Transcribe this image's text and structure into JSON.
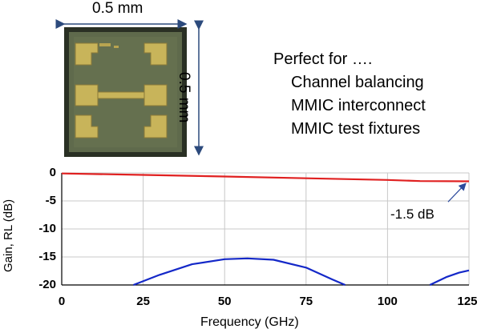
{
  "figure": {
    "width_label": "0.5 mm",
    "height_label": "0.5 mm",
    "bullets": {
      "heading": "Perfect for ….",
      "items": [
        "Channel balancing",
        "MMIC interconnect",
        "MMIC test fixtures"
      ]
    },
    "colors": {
      "gain_line": "#e02020",
      "rl_line": "#1428c8",
      "chip_bg": "#5a6448",
      "pad_gold": "#c8b45a",
      "grid": "#c8c8c8"
    }
  },
  "chart_data": {
    "type": "line",
    "title": "",
    "xlabel": "Frequency (GHz)",
    "ylabel": "Gain, RL (dB)",
    "xlim": [
      0,
      125
    ],
    "ylim": [
      -20,
      0
    ],
    "x_ticks": [
      "0",
      "25",
      "50",
      "75",
      "100",
      "125"
    ],
    "y_ticks": [
      "0",
      "-5",
      "-10",
      "-15",
      "-20"
    ],
    "grid": true,
    "annotation": "-1.5 dB",
    "series": [
      {
        "color": "#e02020",
        "x": [
          0,
          25,
          50,
          75,
          100,
          110,
          125
        ],
        "y": [
          -0.1,
          -0.35,
          -0.65,
          -0.95,
          -1.25,
          -1.45,
          -1.5
        ]
      },
      {
        "color": "#1428c8",
        "x": [
          22,
          30,
          40,
          50,
          57,
          65,
          75,
          83,
          87
        ],
        "y": [
          -20,
          -18.2,
          -16.3,
          -15.4,
          -15.25,
          -15.5,
          -16.9,
          -19.0,
          -20
        ]
      },
      {
        "color": "#1428c8",
        "x": [
          113,
          118,
          122,
          125
        ],
        "y": [
          -20,
          -18.6,
          -17.8,
          -17.4
        ]
      }
    ]
  }
}
